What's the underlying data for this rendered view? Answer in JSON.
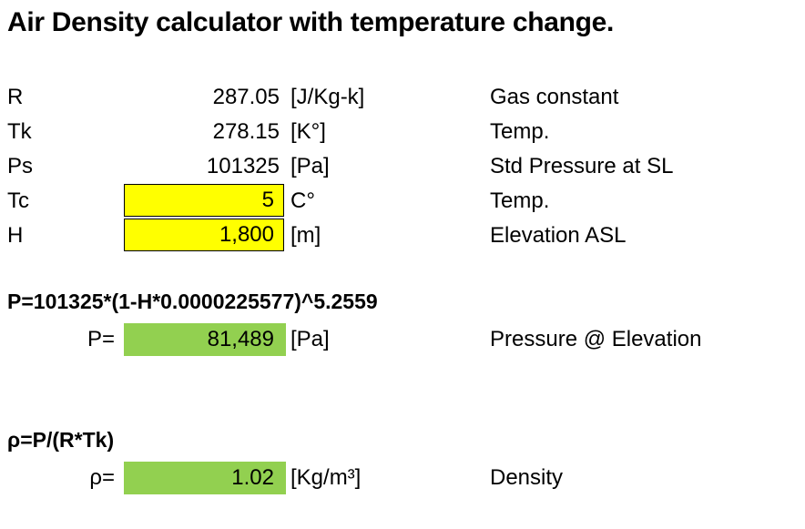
{
  "title": "Air Density calculator with temperature change.",
  "constants": [
    {
      "label": "R",
      "value": "287.05",
      "unit": "[J/Kg-k]",
      "desc": "Gas constant"
    },
    {
      "label": "Tk",
      "value": "278.15",
      "unit": "[K°]",
      "desc": "Temp."
    },
    {
      "label": "Ps",
      "value": "101325",
      "unit": "[Pa]",
      "desc": "Std Pressure at SL"
    }
  ],
  "inputs": [
    {
      "label": "Tc",
      "value": "5",
      "unit": "C°",
      "desc": "Temp."
    },
    {
      "label": "H",
      "value": "1,800",
      "unit": "[m]",
      "desc": "Elevation ASL"
    }
  ],
  "pressure": {
    "formula": "P=101325*(1-H*0.0000225577)^5.2559",
    "label": "P=",
    "value": "81,489",
    "unit": "[Pa]",
    "desc": "Pressure @ Elevation"
  },
  "density": {
    "formula": "ρ=P/(R*Tk)",
    "label": "ρ=",
    "value": "1.02",
    "unit": "[Kg/m³]",
    "desc": "Density"
  },
  "colors": {
    "input_fill": "#ffff00",
    "result_fill": "#92d050"
  }
}
